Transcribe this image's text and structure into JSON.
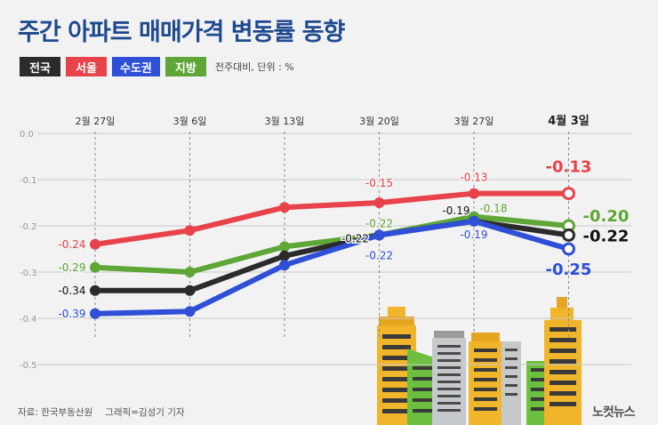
{
  "title": "주간 아파트 매매가격 변동률 동향",
  "legend_note": "전주대비, 단위 : %",
  "source": "자료: 한국부동산원",
  "credit": "그래픽=김성기 기자",
  "logo_text": "노컷뉴스",
  "colors": {
    "national": "#2b2b2b",
    "seoul": "#e8434b",
    "capital": "#2e4fd6",
    "local": "#5ea636",
    "grid": "#c9c9c9",
    "axis_label": "#999999"
  },
  "chart_data": {
    "type": "line",
    "x": [
      "2월 27일",
      "3월 6일",
      "3월 13일",
      "3월 20일",
      "3월 27일",
      "4월 3일"
    ],
    "ylim": [
      -0.5,
      0.0
    ],
    "yticks": [
      "0.0",
      "-0.1",
      "-0.2",
      "-0.3",
      "-0.4",
      "-0.5"
    ],
    "series": [
      {
        "name": "서울",
        "key": "seoul",
        "values": [
          -0.24,
          -0.21,
          -0.16,
          -0.15,
          -0.13,
          -0.13
        ],
        "labels": [
          "-0.24",
          null,
          null,
          "-0.15",
          "-0.13",
          "-0.13"
        ]
      },
      {
        "name": "지방",
        "key": "local",
        "values": [
          -0.29,
          -0.3,
          -0.245,
          -0.22,
          -0.18,
          -0.2
        ],
        "labels": [
          "-0.29",
          null,
          null,
          "-0.22",
          "-0.18",
          "-0.20"
        ]
      },
      {
        "name": "전국",
        "key": "national",
        "values": [
          -0.34,
          -0.34,
          -0.265,
          -0.22,
          -0.19,
          -0.22
        ],
        "labels": [
          "-0.34",
          null,
          null,
          "-0.22",
          "-0.19",
          "-0.22"
        ]
      },
      {
        "name": "수도권",
        "key": "capital",
        "values": [
          -0.39,
          -0.385,
          -0.285,
          -0.22,
          -0.19,
          -0.25
        ],
        "labels": [
          "-0.39",
          null,
          null,
          "-0.22",
          "-0.19",
          "-0.25"
        ]
      }
    ],
    "legend_order": [
      "national",
      "seoul",
      "capital",
      "local"
    ]
  }
}
